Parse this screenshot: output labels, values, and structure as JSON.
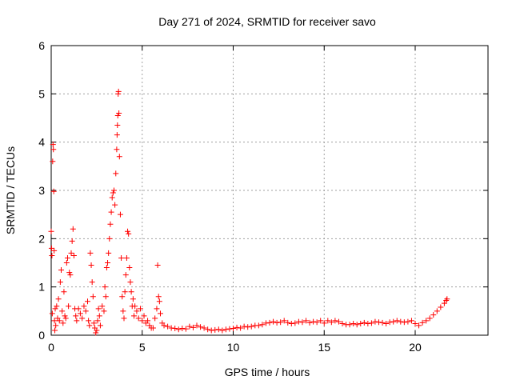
{
  "chart_data": {
    "type": "scatter",
    "title": "Day 271 of 2024, SRMTID for receiver savo",
    "xlabel": "GPS time / hours",
    "ylabel": "SRMTID / TECUs",
    "xlim": [
      0,
      24
    ],
    "ylim": [
      0,
      6
    ],
    "xticks": [
      0,
      5,
      10,
      15,
      20
    ],
    "yticks": [
      0,
      1,
      2,
      3,
      4,
      5,
      6
    ],
    "grid": true,
    "marker": "+",
    "marker_color": "#ff0000",
    "series": [
      {
        "name": "SRMTID",
        "points": [
          [
            0.0,
            2.15
          ],
          [
            0.02,
            1.8
          ],
          [
            0.04,
            1.65
          ],
          [
            0.06,
            0.45
          ],
          [
            0.08,
            3.6
          ],
          [
            0.1,
            3.95
          ],
          [
            0.12,
            3.85
          ],
          [
            0.14,
            2.98
          ],
          [
            0.16,
            1.75
          ],
          [
            0.18,
            0.3
          ],
          [
            0.2,
            0.1
          ],
          [
            0.22,
            0.55
          ],
          [
            0.25,
            0.2
          ],
          [
            0.3,
            0.6
          ],
          [
            0.35,
            0.35
          ],
          [
            0.4,
            0.75
          ],
          [
            0.45,
            0.3
          ],
          [
            0.5,
            1.1
          ],
          [
            0.55,
            1.35
          ],
          [
            0.6,
            0.5
          ],
          [
            0.65,
            0.25
          ],
          [
            0.7,
            0.9
          ],
          [
            0.75,
            0.4
          ],
          [
            0.8,
            0.35
          ],
          [
            0.85,
            1.5
          ],
          [
            0.9,
            1.6
          ],
          [
            0.95,
            0.6
          ],
          [
            1.0,
            1.3
          ],
          [
            1.05,
            1.25
          ],
          [
            1.1,
            1.7
          ],
          [
            1.15,
            1.95
          ],
          [
            1.2,
            2.2
          ],
          [
            1.25,
            1.65
          ],
          [
            1.3,
            0.55
          ],
          [
            1.35,
            0.4
          ],
          [
            1.4,
            0.3
          ],
          [
            1.5,
            0.55
          ],
          [
            1.6,
            0.45
          ],
          [
            1.7,
            0.35
          ],
          [
            1.8,
            0.6
          ],
          [
            1.9,
            0.5
          ],
          [
            2.0,
            0.7
          ],
          [
            2.05,
            0.3
          ],
          [
            2.1,
            0.2
          ],
          [
            2.15,
            1.7
          ],
          [
            2.2,
            1.45
          ],
          [
            2.25,
            1.1
          ],
          [
            2.3,
            0.8
          ],
          [
            2.35,
            0.25
          ],
          [
            2.4,
            0.15
          ],
          [
            2.45,
            0.05
          ],
          [
            2.5,
            0.1
          ],
          [
            2.55,
            0.3
          ],
          [
            2.6,
            0.55
          ],
          [
            2.65,
            0.4
          ],
          [
            2.7,
            0.2
          ],
          [
            2.8,
            0.6
          ],
          [
            2.9,
            0.5
          ],
          [
            2.95,
            1.0
          ],
          [
            3.0,
            0.8
          ],
          [
            3.05,
            1.4
          ],
          [
            3.1,
            1.5
          ],
          [
            3.15,
            1.7
          ],
          [
            3.2,
            2.0
          ],
          [
            3.25,
            2.3
          ],
          [
            3.3,
            2.55
          ],
          [
            3.35,
            2.85
          ],
          [
            3.4,
            2.95
          ],
          [
            3.45,
            3.0
          ],
          [
            3.5,
            2.7
          ],
          [
            3.55,
            3.35
          ],
          [
            3.6,
            3.85
          ],
          [
            3.62,
            4.15
          ],
          [
            3.64,
            4.35
          ],
          [
            3.66,
            4.55
          ],
          [
            3.68,
            5.0
          ],
          [
            3.7,
            5.05
          ],
          [
            3.72,
            4.6
          ],
          [
            3.75,
            3.7
          ],
          [
            3.8,
            2.5
          ],
          [
            3.85,
            1.6
          ],
          [
            3.9,
            0.8
          ],
          [
            3.95,
            0.5
          ],
          [
            4.0,
            0.35
          ],
          [
            4.05,
            0.9
          ],
          [
            4.1,
            1.25
          ],
          [
            4.15,
            1.6
          ],
          [
            4.2,
            2.15
          ],
          [
            4.25,
            2.1
          ],
          [
            4.3,
            1.4
          ],
          [
            4.35,
            1.1
          ],
          [
            4.4,
            0.9
          ],
          [
            4.45,
            0.6
          ],
          [
            4.5,
            0.75
          ],
          [
            4.55,
            0.4
          ],
          [
            4.6,
            0.6
          ],
          [
            4.7,
            0.5
          ],
          [
            4.8,
            0.35
          ],
          [
            4.9,
            0.55
          ],
          [
            5.0,
            0.3
          ],
          [
            5.1,
            0.4
          ],
          [
            5.2,
            0.25
          ],
          [
            5.3,
            0.3
          ],
          [
            5.4,
            0.2
          ],
          [
            5.5,
            0.15
          ],
          [
            5.6,
            0.15
          ],
          [
            5.7,
            0.35
          ],
          [
            5.8,
            0.55
          ],
          [
            5.85,
            1.45
          ],
          [
            5.9,
            0.8
          ],
          [
            5.95,
            0.7
          ],
          [
            6.0,
            0.45
          ],
          [
            6.1,
            0.25
          ],
          [
            6.2,
            0.2
          ],
          [
            6.4,
            0.18
          ],
          [
            6.6,
            0.15
          ],
          [
            6.8,
            0.14
          ],
          [
            7.0,
            0.12
          ],
          [
            7.2,
            0.14
          ],
          [
            7.4,
            0.13
          ],
          [
            7.6,
            0.18
          ],
          [
            7.8,
            0.16
          ],
          [
            8.0,
            0.2
          ],
          [
            8.2,
            0.17
          ],
          [
            8.4,
            0.15
          ],
          [
            8.6,
            0.12
          ],
          [
            8.8,
            0.1
          ],
          [
            9.0,
            0.11
          ],
          [
            9.2,
            0.12
          ],
          [
            9.4,
            0.1
          ],
          [
            9.6,
            0.12
          ],
          [
            9.8,
            0.13
          ],
          [
            10.0,
            0.14
          ],
          [
            10.2,
            0.16
          ],
          [
            10.4,
            0.15
          ],
          [
            10.6,
            0.18
          ],
          [
            10.8,
            0.17
          ],
          [
            11.0,
            0.18
          ],
          [
            11.2,
            0.2
          ],
          [
            11.4,
            0.2
          ],
          [
            11.6,
            0.22
          ],
          [
            11.8,
            0.25
          ],
          [
            12.0,
            0.26
          ],
          [
            12.2,
            0.28
          ],
          [
            12.4,
            0.26
          ],
          [
            12.6,
            0.27
          ],
          [
            12.8,
            0.3
          ],
          [
            13.0,
            0.26
          ],
          [
            13.2,
            0.24
          ],
          [
            13.4,
            0.25
          ],
          [
            13.6,
            0.28
          ],
          [
            13.8,
            0.27
          ],
          [
            14.0,
            0.3
          ],
          [
            14.2,
            0.26
          ],
          [
            14.4,
            0.28
          ],
          [
            14.6,
            0.27
          ],
          [
            14.8,
            0.3
          ],
          [
            15.0,
            0.25
          ],
          [
            15.2,
            0.3
          ],
          [
            15.4,
            0.27
          ],
          [
            15.6,
            0.3
          ],
          [
            15.8,
            0.28
          ],
          [
            16.0,
            0.24
          ],
          [
            16.2,
            0.22
          ],
          [
            16.4,
            0.22
          ],
          [
            16.6,
            0.24
          ],
          [
            16.8,
            0.22
          ],
          [
            17.0,
            0.24
          ],
          [
            17.2,
            0.26
          ],
          [
            17.4,
            0.24
          ],
          [
            17.6,
            0.25
          ],
          [
            17.8,
            0.28
          ],
          [
            18.0,
            0.27
          ],
          [
            18.2,
            0.26
          ],
          [
            18.4,
            0.24
          ],
          [
            18.6,
            0.27
          ],
          [
            18.8,
            0.28
          ],
          [
            19.0,
            0.3
          ],
          [
            19.2,
            0.28
          ],
          [
            19.4,
            0.27
          ],
          [
            19.6,
            0.28
          ],
          [
            19.8,
            0.3
          ],
          [
            20.0,
            0.24
          ],
          [
            20.2,
            0.2
          ],
          [
            20.4,
            0.26
          ],
          [
            20.6,
            0.3
          ],
          [
            20.8,
            0.35
          ],
          [
            21.0,
            0.42
          ],
          [
            21.2,
            0.5
          ],
          [
            21.4,
            0.58
          ],
          [
            21.6,
            0.66
          ],
          [
            21.7,
            0.72
          ],
          [
            21.75,
            0.75
          ]
        ]
      }
    ]
  }
}
